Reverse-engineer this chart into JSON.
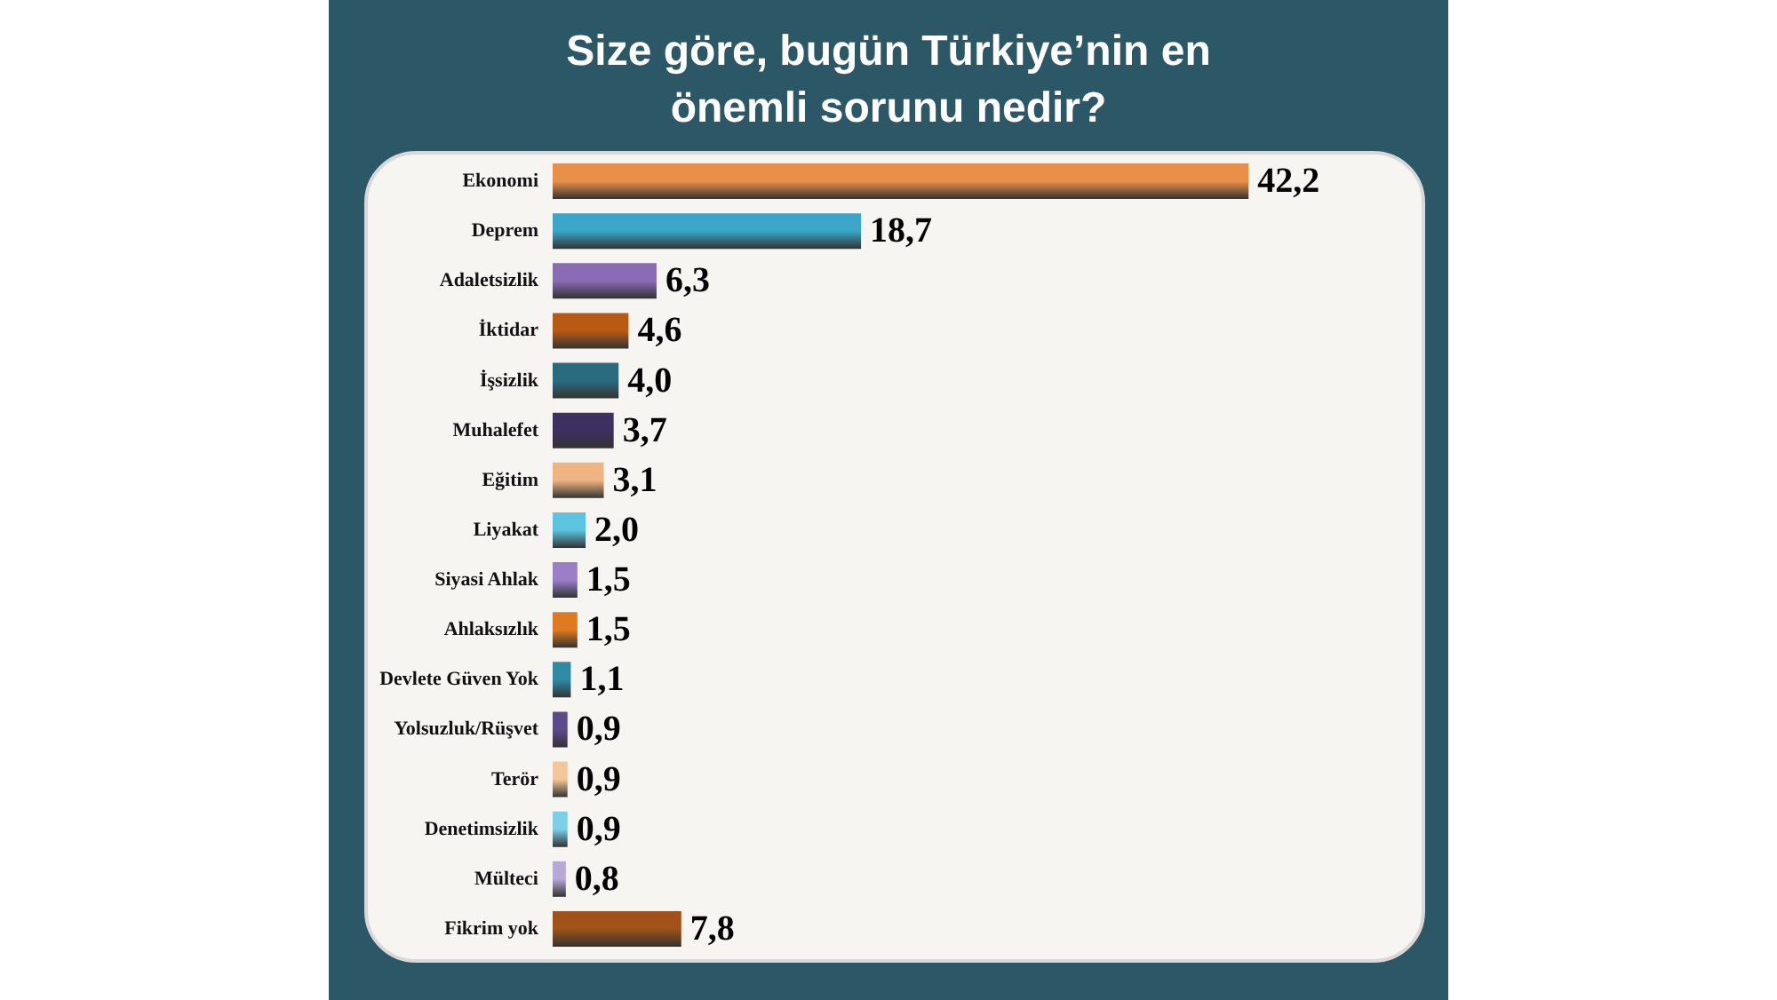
{
  "chart_data": {
    "type": "bar",
    "orientation": "horizontal",
    "title": "Size göre, bugün Türkiye’nin en\nönemli sorunu nedir?",
    "categories": [
      "Ekonomi",
      "Deprem",
      "Adaletsizlik",
      "İktidar",
      "İşsizlik",
      "Muhalefet",
      "Eğitim",
      "Liyakat",
      "Siyasi Ahlak",
      "Ahlaksızlık",
      "Devlete Güven Yok",
      "Yolsuzluk/Rüşvet",
      "Terör",
      "Denetimsizlik",
      "Mülteci",
      "Fikrim yok"
    ],
    "values": [
      42.2,
      18.7,
      6.3,
      4.6,
      4.0,
      3.7,
      3.1,
      2.0,
      1.5,
      1.5,
      1.1,
      0.9,
      0.9,
      0.9,
      0.8,
      7.8
    ],
    "value_labels": [
      "42,2",
      "18,7",
      "6,3",
      "4,6",
      "4,0",
      "3,7",
      "3,1",
      "2,0",
      "1,5",
      "1,5",
      "1,1",
      "0,9",
      "0,9",
      "0,9",
      "0,8",
      "7,8"
    ],
    "colors": [
      "#e8904a",
      "#3aa6c9",
      "#8a6bb5",
      "#b85a14",
      "#2a6b7f",
      "#3e3060",
      "#f0b482",
      "#5cc3e0",
      "#9a7fc8",
      "#e07a20",
      "#2f8aa5",
      "#5a4a8a",
      "#f3c79a",
      "#7ccfe8",
      "#b8a8d8",
      "#a0521a"
    ]
  }
}
